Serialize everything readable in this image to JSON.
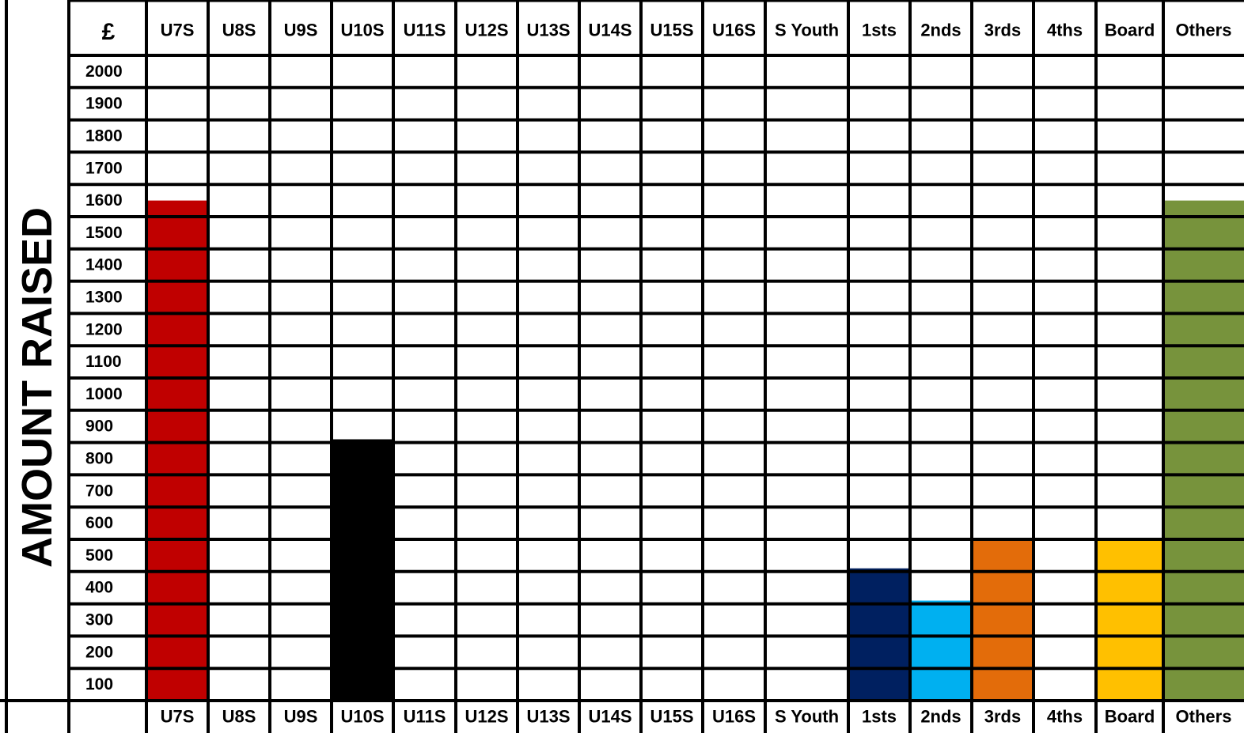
{
  "chart_data": {
    "type": "bar",
    "ylabel": "AMOUNT RAISED",
    "currency_symbol": "£",
    "categories": [
      "U7S",
      "U8S",
      "U9S",
      "U10S",
      "U11S",
      "U12S",
      "U13S",
      "U14S",
      "U15S",
      "U16S",
      "S Youth",
      "1sts",
      "2nds",
      "3rds",
      "4ths",
      "Board",
      "Others"
    ],
    "values": [
      1550,
      0,
      0,
      810,
      0,
      0,
      0,
      0,
      0,
      0,
      0,
      410,
      310,
      500,
      0,
      500,
      1550
    ],
    "colors": [
      "#c00000",
      "#ffffff",
      "#ffffff",
      "#000000",
      "#ffffff",
      "#ffffff",
      "#ffffff",
      "#ffffff",
      "#ffffff",
      "#ffffff",
      "#ffffff",
      "#002060",
      "#00b0f0",
      "#e36c0a",
      "#ffffff",
      "#ffc000",
      "#77933c"
    ],
    "y_ticks": [
      2000,
      1900,
      1800,
      1700,
      1600,
      1500,
      1400,
      1300,
      1200,
      1100,
      1000,
      900,
      800,
      700,
      600,
      500,
      400,
      300,
      200,
      100
    ],
    "ylim": [
      0,
      2000
    ],
    "grid": true,
    "legend": "none"
  }
}
